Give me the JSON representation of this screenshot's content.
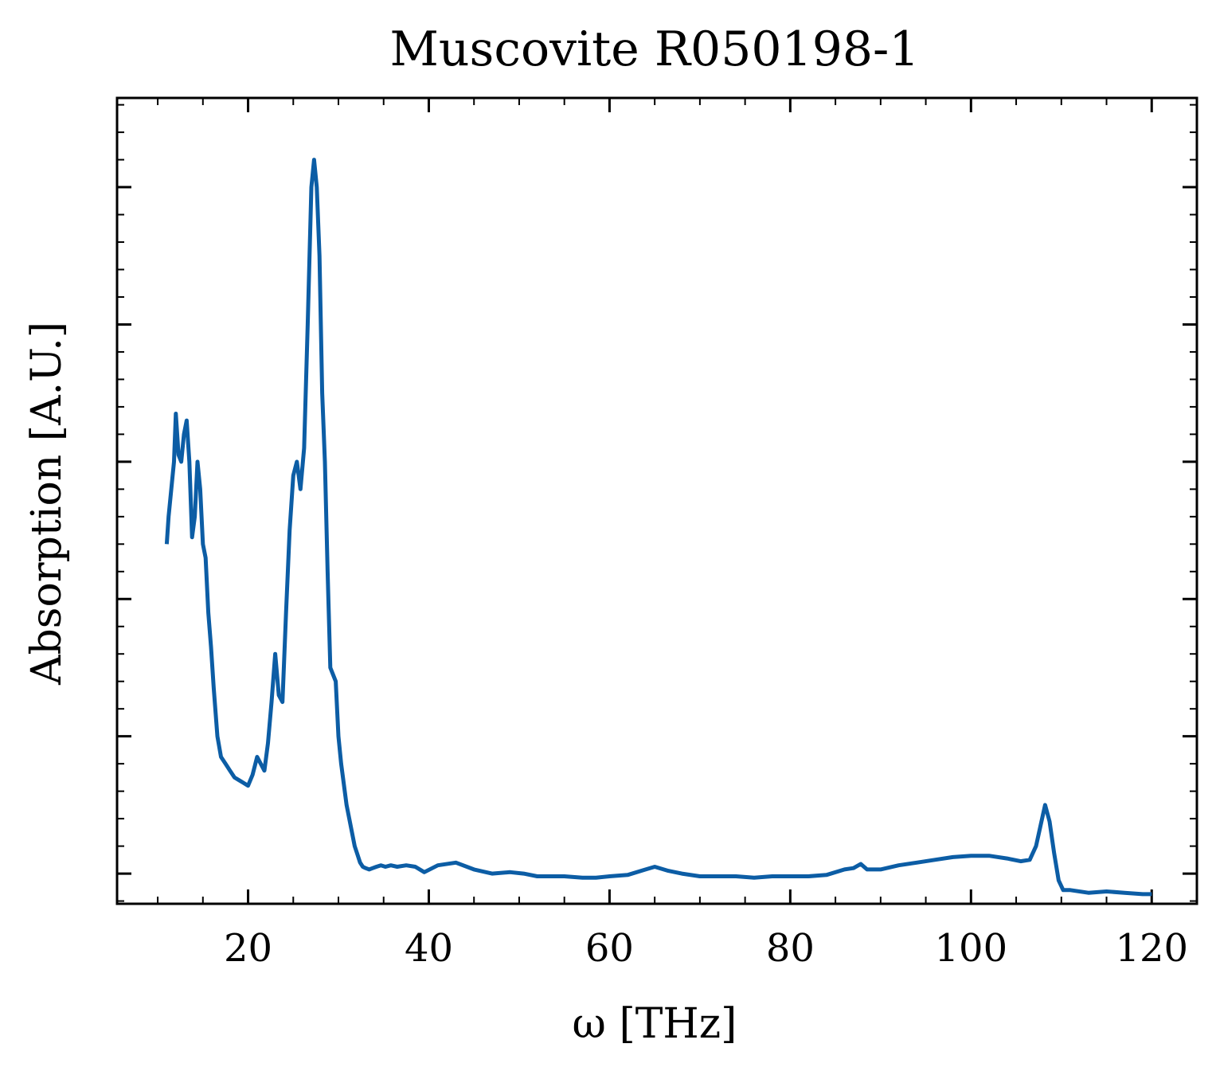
{
  "chart_data": {
    "type": "line",
    "title": "Muscovite R050198-1",
    "xlabel": "ω [THz]",
    "ylabel": "Absorption [A.U.]",
    "xlim": [
      5.5,
      125
    ],
    "ylim": [
      -0.22,
      5.65
    ],
    "x_ticks": [
      20,
      40,
      60,
      80,
      100,
      120
    ],
    "x_tick_labels": [
      "20",
      "40",
      "60",
      "80",
      "100",
      "120"
    ],
    "x_minor_step": 5,
    "y_ticks": [
      0,
      1,
      2,
      3,
      4,
      5
    ],
    "y_minor_step": 0.2,
    "y_tick_labels_shown": false,
    "grid": false,
    "legend": "none",
    "line_color": "#0c5da5",
    "series": [
      {
        "x": [
          11.0,
          11.2,
          11.5,
          11.8,
          12.0,
          12.3,
          12.6,
          12.9,
          13.2,
          13.5,
          13.8,
          14.1,
          14.4,
          14.7,
          15.0,
          15.3,
          15.6,
          15.9,
          16.2,
          16.6,
          17.0,
          17.5,
          18.0,
          18.5,
          19.0,
          19.5,
          20.0,
          20.5,
          21.0,
          21.4,
          21.8,
          22.2,
          22.6,
          23.0,
          23.4,
          23.8,
          24.2,
          24.6,
          25.0,
          25.4,
          25.8,
          26.2,
          26.6,
          27.0,
          27.3,
          27.6,
          27.9,
          28.2,
          28.5,
          28.8,
          29.1,
          29.4,
          29.7,
          30.0,
          30.3,
          30.6,
          30.9,
          31.2,
          31.5,
          31.8,
          32.1,
          32.4,
          32.7,
          33.0,
          33.4,
          33.8,
          34.2,
          34.7,
          35.2,
          35.8,
          36.5,
          37.5,
          38.5,
          39.5,
          41.0,
          43.0,
          45.0,
          47.0,
          49.0,
          50.5,
          52.0,
          55.0,
          57.0,
          58.5,
          60.0,
          62.0,
          64.0,
          65.0,
          66.5,
          68.0,
          70.0,
          72.0,
          74.0,
          76.0,
          78.0,
          80.0,
          82.0,
          84.0,
          86.0,
          87.0,
          87.8,
          88.5,
          90.0,
          92.0,
          94.0,
          96.0,
          98.0,
          100.0,
          102.0,
          104.0,
          105.5,
          106.5,
          107.2,
          107.7,
          108.2,
          108.7,
          109.2,
          109.7,
          110.2,
          111.0,
          113.0,
          115.0,
          117.0,
          119.0,
          120.0
        ],
        "y": [
          2.4,
          2.6,
          2.8,
          3.0,
          3.35,
          3.05,
          3.0,
          3.2,
          3.3,
          3.0,
          2.45,
          2.6,
          3.0,
          2.8,
          2.4,
          2.3,
          1.9,
          1.65,
          1.35,
          1.0,
          0.85,
          0.8,
          0.75,
          0.7,
          0.68,
          0.66,
          0.64,
          0.72,
          0.85,
          0.8,
          0.75,
          0.95,
          1.25,
          1.6,
          1.3,
          1.25,
          1.9,
          2.5,
          2.9,
          3.0,
          2.8,
          3.1,
          4.0,
          5.0,
          5.2,
          5.0,
          4.5,
          3.5,
          3.0,
          2.2,
          1.5,
          1.45,
          1.4,
          1.0,
          0.8,
          0.65,
          0.5,
          0.4,
          0.3,
          0.2,
          0.14,
          0.08,
          0.05,
          0.04,
          0.03,
          0.04,
          0.05,
          0.06,
          0.05,
          0.06,
          0.05,
          0.06,
          0.05,
          0.01,
          0.06,
          0.08,
          0.03,
          0.0,
          0.01,
          0.0,
          -0.02,
          -0.02,
          -0.03,
          -0.03,
          -0.02,
          -0.01,
          0.03,
          0.05,
          0.02,
          0.0,
          -0.02,
          -0.02,
          -0.02,
          -0.03,
          -0.02,
          -0.02,
          -0.02,
          -0.01,
          0.03,
          0.04,
          0.07,
          0.03,
          0.03,
          0.06,
          0.08,
          0.1,
          0.12,
          0.13,
          0.13,
          0.11,
          0.09,
          0.1,
          0.2,
          0.35,
          0.5,
          0.38,
          0.15,
          -0.05,
          -0.12,
          -0.12,
          -0.14,
          -0.13,
          -0.14,
          -0.15,
          -0.15
        ]
      }
    ]
  }
}
